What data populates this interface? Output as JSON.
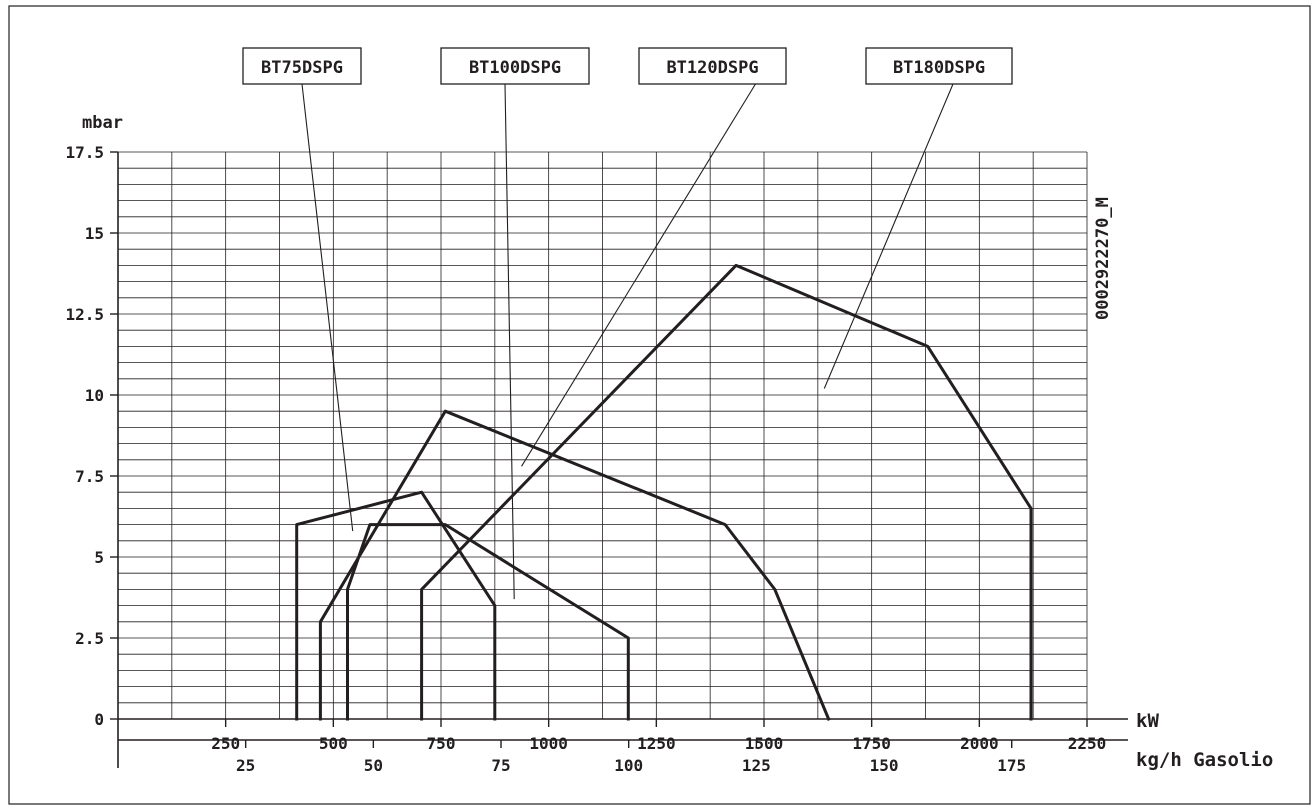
{
  "chart_data": {
    "type": "line",
    "ylabel": "mbar",
    "xlabel": "kW",
    "x2label": "kg/h Gasolio",
    "code": "0002922270_M",
    "xlim": [
      0,
      2250
    ],
    "ylim": [
      0,
      17.5
    ],
    "x_ticks": [
      250,
      500,
      750,
      1000,
      1250,
      1500,
      1750,
      2000,
      2250
    ],
    "x2_ticks": [
      25,
      50,
      75,
      100,
      125,
      150,
      175
    ],
    "x2_per_kw": 0.08433,
    "y_ticks": [
      0,
      2.5,
      5,
      7.5,
      10,
      12.5,
      15,
      17.5
    ],
    "y_tick_labels": [
      "0",
      "2.5",
      "5",
      "7.5",
      "10",
      "12.5",
      "15",
      "17.5"
    ],
    "grid": true,
    "series": [
      {
        "name": "BT75DSPG",
        "points": [
          [
            415,
            0
          ],
          [
            415,
            6
          ],
          [
            705,
            7
          ],
          [
            875,
            3.5
          ],
          [
            875,
            0
          ]
        ]
      },
      {
        "name": "BT100DSPG",
        "points": [
          [
            533,
            0
          ],
          [
            533,
            4
          ],
          [
            585,
            6
          ],
          [
            760,
            6
          ],
          [
            1185,
            2.5
          ],
          [
            1185,
            0
          ]
        ]
      },
      {
        "name": "BT120DSPG",
        "points": [
          [
            470,
            0
          ],
          [
            470,
            3
          ],
          [
            760,
            9.5
          ],
          [
            1410,
            6
          ],
          [
            1525,
            4
          ],
          [
            1650,
            0
          ]
        ]
      },
      {
        "name": "BT180DSPG",
        "points": [
          [
            705,
            0
          ],
          [
            705,
            4
          ],
          [
            1435,
            14
          ],
          [
            1880,
            11.5
          ],
          [
            2120,
            6.5
          ],
          [
            2120,
            0
          ]
        ]
      }
    ],
    "annotations": [
      {
        "series": "BT75DSPG",
        "label": "BT75DSPG",
        "target": [
          545,
          5.8
        ]
      },
      {
        "series": "BT100DSPG",
        "label": "BT100DSPG",
        "target": [
          920,
          3.7
        ]
      },
      {
        "series": "BT120DSPG",
        "label": "BT120DSPG",
        "target": [
          937,
          7.8
        ]
      },
      {
        "series": "BT180DSPG",
        "label": "BT180DSPG",
        "target": [
          1640,
          10.2
        ]
      }
    ]
  }
}
